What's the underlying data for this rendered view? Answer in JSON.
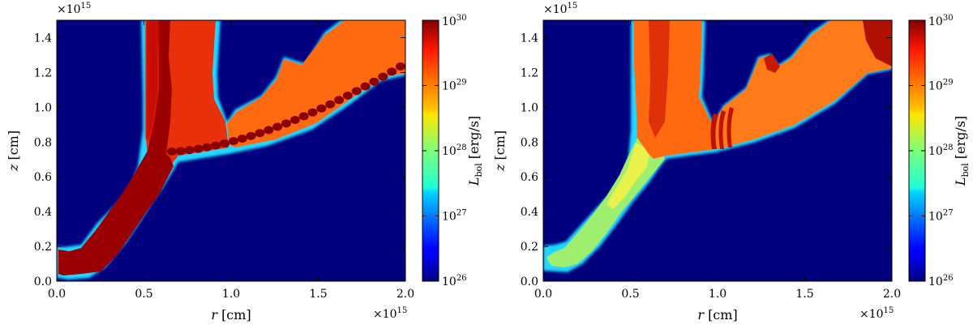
{
  "chart_data": [
    {
      "type": "heatmap",
      "panel": "left",
      "x_multiplier": "×10",
      "x_multiplier_exp": "15",
      "y_multiplier": "×10",
      "y_multiplier_exp": "15",
      "xlabel": "r",
      "xlabel_unit": "[cm]",
      "ylabel": "z",
      "ylabel_unit": "[cm]",
      "xlim": [
        0.0,
        2.0
      ],
      "ylim": [
        0.0,
        1.5
      ],
      "xticks": [
        "0.0",
        "0.5",
        "1.0",
        "1.5",
        "2.0"
      ],
      "yticks": [
        "0.0",
        "0.2",
        "0.4",
        "0.6",
        "0.8",
        "1.0",
        "1.2",
        "1.4"
      ],
      "colorbar": {
        "label": "L",
        "label_sub": "bol",
        "label_unit": "[erg/s]",
        "scale": "log",
        "range": [
          26,
          30
        ],
        "ticks": [
          "10",
          "10",
          "10",
          "10",
          "10"
        ],
        "tick_exps": [
          "30",
          "29",
          "28",
          "27",
          "26"
        ]
      }
    },
    {
      "type": "heatmap",
      "panel": "right",
      "x_multiplier": "×10",
      "x_multiplier_exp": "15",
      "y_multiplier": "×10",
      "y_multiplier_exp": "15",
      "xlabel": "r",
      "xlabel_unit": "[cm]",
      "ylabel": "z",
      "ylabel_unit": "[cm]",
      "xlim": [
        0.0,
        2.0
      ],
      "ylim": [
        0.0,
        1.5
      ],
      "xticks": [
        "0.0",
        "0.5",
        "1.0",
        "1.5",
        "2.0"
      ],
      "yticks": [
        "0.0",
        "0.2",
        "0.4",
        "0.6",
        "0.8",
        "1.0",
        "1.2",
        "1.4"
      ],
      "colorbar": {
        "label": "L",
        "label_sub": "bol",
        "label_unit": "[erg/s]",
        "scale": "log",
        "range": [
          26,
          30
        ],
        "ticks": [
          "10",
          "10",
          "10",
          "10",
          "10"
        ],
        "tick_exps": [
          "30",
          "29",
          "28",
          "27",
          "26"
        ]
      }
    }
  ],
  "colors": {
    "background": "#00007f",
    "dark_red": "#9a0000",
    "red": "#e02000",
    "orange": "#ff6a00",
    "light_orange": "#ff8c1a",
    "yellow": "#ffd000",
    "green": "#a0f060",
    "cyan": "#20e0ff"
  }
}
